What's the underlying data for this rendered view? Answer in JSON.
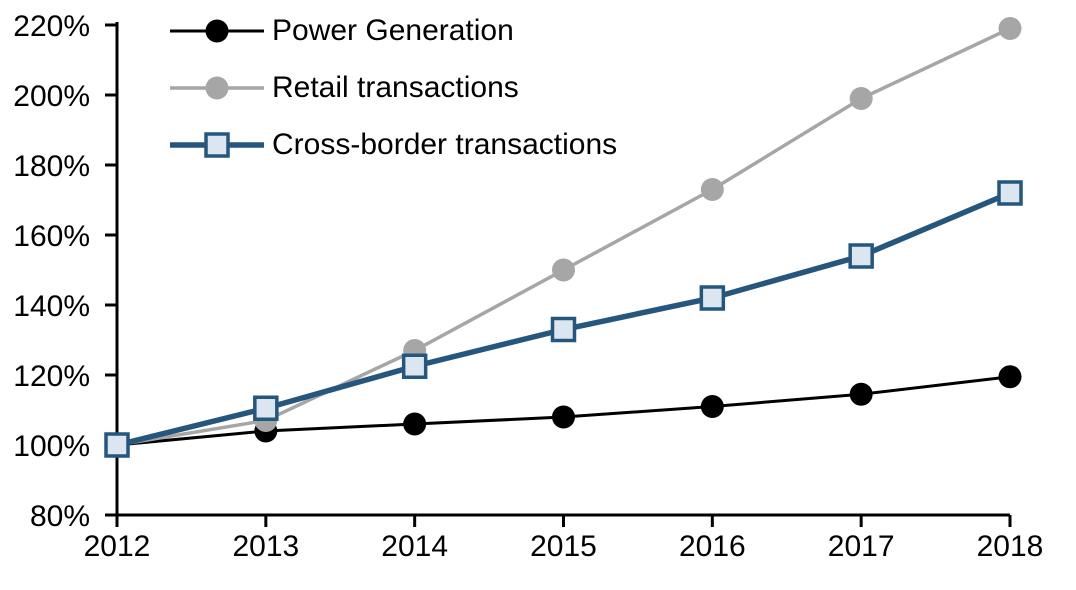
{
  "chart_data": {
    "type": "line",
    "title": "",
    "xlabel": "",
    "ylabel": "",
    "background": "#ffffff",
    "axis_color": "#000000",
    "grid": false,
    "legend_position": "top-left-inside",
    "x": [
      2012,
      2013,
      2014,
      2015,
      2016,
      2017,
      2018
    ],
    "x_tick_labels": [
      "2012",
      "2013",
      "2014",
      "2015",
      "2016",
      "2017",
      "2018"
    ],
    "ylim": [
      80,
      220
    ],
    "y_tick_step": 20,
    "y_tick_labels": [
      "80%",
      "100%",
      "120%",
      "140%",
      "160%",
      "180%",
      "200%",
      "220%"
    ],
    "series": [
      {
        "name": "Power Generation",
        "color": "#000000",
        "marker": "circle",
        "marker_fill": "#000000",
        "line_width": 3,
        "values": [
          100,
          104,
          106,
          108,
          111,
          114.5,
          119.5
        ]
      },
      {
        "name": "Retail transactions",
        "color": "#a6a6a6",
        "marker": "circle",
        "marker_fill": "#a6a6a6",
        "line_width": 3.5,
        "values": [
          100,
          107,
          127,
          150,
          173,
          199,
          219
        ]
      },
      {
        "name": "Cross-border transactions",
        "color": "#25567e",
        "marker": "square",
        "marker_fill": "#dce6f1",
        "line_width": 5.5,
        "values": [
          100,
          110.5,
          122.5,
          133,
          142,
          154,
          172
        ]
      }
    ]
  }
}
